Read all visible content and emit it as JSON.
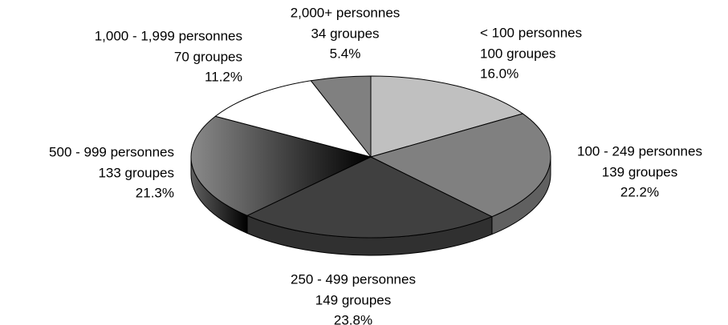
{
  "chart_data": {
    "type": "pie",
    "categories": [
      "< 100 personnes",
      "100 - 249 personnes",
      "250 - 499 personnes",
      "500 - 999 personnes",
      "1,000 - 1,999 personnes",
      "2,000+ personnes"
    ],
    "group_labels": [
      "100 groupes",
      "139 groupes",
      "149 groupes",
      "133 groupes",
      "70 groupes",
      "34 groupes"
    ],
    "values": [
      16.0,
      22.2,
      23.8,
      21.3,
      11.2,
      5.4
    ],
    "value_labels": [
      "16.0%",
      "22.2%",
      "23.8%",
      "21.3%",
      "11.2%",
      "5.4%"
    ],
    "colors": [
      "#c0c0c0",
      "#808080",
      "#404040",
      "#8a8a8a",
      "#ffffff",
      "#808080"
    ]
  }
}
